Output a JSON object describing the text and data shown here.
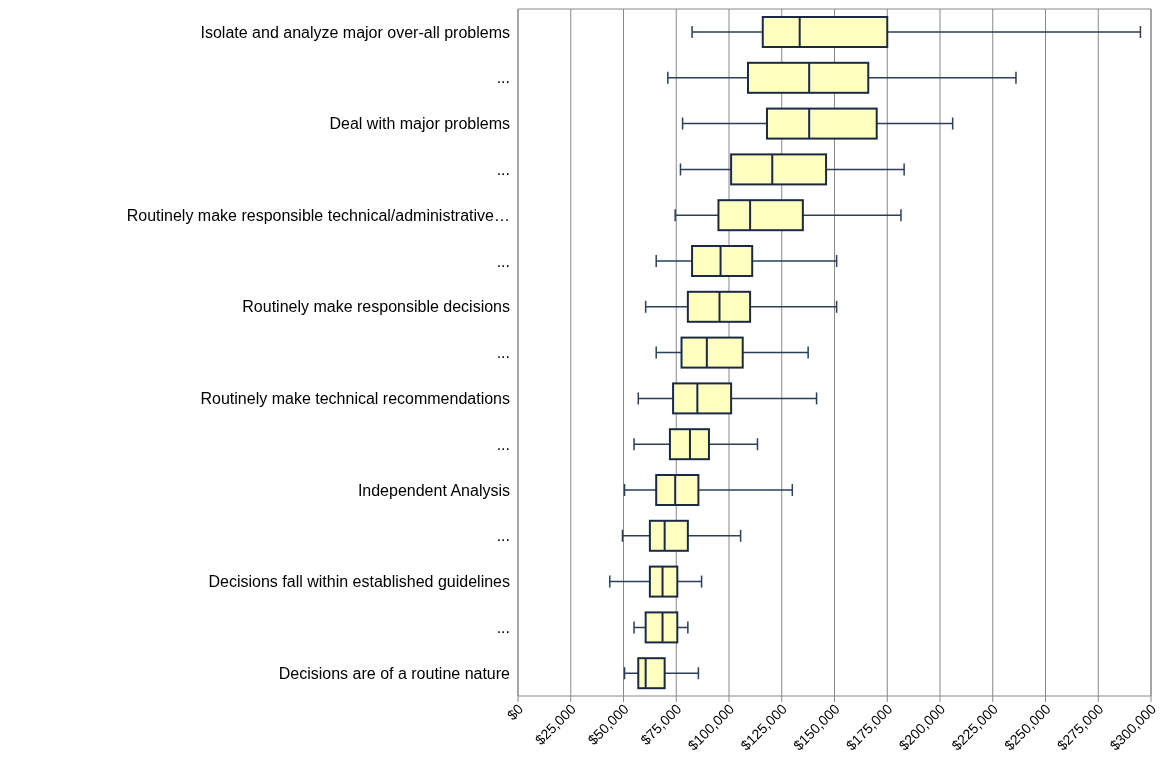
{
  "chart_data": {
    "type": "box",
    "orientation": "horizontal",
    "categories": [
      "Isolate and analyze major over-all problems",
      "...",
      "Deal with major problems",
      "...",
      "Routinely make responsible technical/administrative…",
      "...",
      "Routinely make responsible decisions",
      "...",
      "Routinely make technical recommendations",
      "...",
      "Independent Analysis",
      "...",
      "Decisions fall within established guidelines",
      "...",
      "Decisions are of a routine nature"
    ],
    "series": [
      {
        "color": "#ffffc0",
        "boxes": [
          {
            "low": 82500,
            "q1": 116000,
            "median": 133500,
            "q3": 175000,
            "high": 295000
          },
          {
            "low": 71000,
            "q1": 109000,
            "median": 138000,
            "q3": 166000,
            "high": 236000
          },
          {
            "low": 78000,
            "q1": 118000,
            "median": 138000,
            "q3": 170000,
            "high": 206000
          },
          {
            "low": 77000,
            "q1": 101000,
            "median": 120500,
            "q3": 146000,
            "high": 183000
          },
          {
            "low": 74500,
            "q1": 95000,
            "median": 110000,
            "q3": 135000,
            "high": 181500
          },
          {
            "low": 65500,
            "q1": 82500,
            "median": 96000,
            "q3": 111000,
            "high": 151000
          },
          {
            "low": 60500,
            "q1": 80500,
            "median": 95500,
            "q3": 110000,
            "high": 151000
          },
          {
            "low": 65500,
            "q1": 77500,
            "median": 89500,
            "q3": 106500,
            "high": 137500
          },
          {
            "low": 57000,
            "q1": 73500,
            "median": 85000,
            "q3": 101000,
            "high": 141500
          },
          {
            "low": 55000,
            "q1": 72000,
            "median": 81500,
            "q3": 90500,
            "high": 113500
          },
          {
            "low": 50500,
            "q1": 65500,
            "median": 74500,
            "q3": 85500,
            "high": 130000
          },
          {
            "low": 49500,
            "q1": 62500,
            "median": 69500,
            "q3": 80500,
            "high": 105500
          },
          {
            "low": 43500,
            "q1": 62500,
            "median": 68500,
            "q3": 75500,
            "high": 87000
          },
          {
            "low": 55000,
            "q1": 60500,
            "median": 68500,
            "q3": 75500,
            "high": 80500
          },
          {
            "low": 50500,
            "q1": 57000,
            "median": 60500,
            "q3": 69500,
            "high": 85500
          }
        ]
      }
    ],
    "xlim": [
      0,
      300000
    ],
    "xticks": [
      {
        "value": 0,
        "label": "$0"
      },
      {
        "value": 25000,
        "label": "$25,000"
      },
      {
        "value": 50000,
        "label": "$50,000"
      },
      {
        "value": 75000,
        "label": "$75,000"
      },
      {
        "value": 100000,
        "label": "$100,000"
      },
      {
        "value": 125000,
        "label": "$125,000"
      },
      {
        "value": 150000,
        "label": "$150,000"
      },
      {
        "value": 175000,
        "label": "$175,000"
      },
      {
        "value": 200000,
        "label": "$200,000"
      },
      {
        "value": 225000,
        "label": "$225,000"
      },
      {
        "value": 250000,
        "label": "$250,000"
      },
      {
        "value": 275000,
        "label": "$275,000"
      },
      {
        "value": 300000,
        "label": "$300,000"
      }
    ],
    "grid": "x"
  }
}
